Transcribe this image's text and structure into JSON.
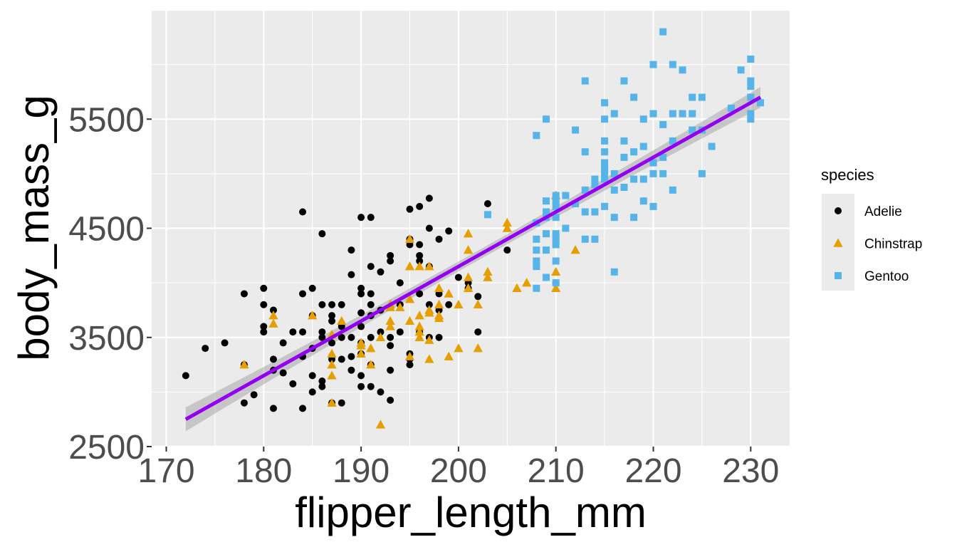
{
  "chart_data": {
    "type": "scatter",
    "xlabel": "flipper_length_mm",
    "ylabel": "body_mass_g",
    "xlim": [
      168.5,
      234.0
    ],
    "ylim": [
      2500,
      6500
    ],
    "x_ticks": [
      170,
      180,
      190,
      200,
      210,
      220,
      230
    ],
    "x_tick_labels": [
      "170",
      "180",
      "190",
      "200",
      "210",
      "220",
      "230"
    ],
    "y_ticks": [
      2500,
      3500,
      4500,
      5500
    ],
    "y_tick_labels": [
      "2500",
      "3500",
      "4500",
      "5500"
    ],
    "grid": true,
    "legend": {
      "title": "species",
      "placement": "right",
      "entries": [
        "Adelie",
        "Chinstrap",
        "Gentoo"
      ]
    },
    "trend_line": {
      "method": "linear",
      "x": [
        172,
        231
      ],
      "y": [
        2750,
        5700
      ],
      "ci_halfwidth_start": 110,
      "ci_halfwidth_mid": 45,
      "ci_halfwidth_end": 95,
      "color": "#9400F0",
      "ci_color": "#999999"
    },
    "series": [
      {
        "name": "Adelie",
        "marker": "circle",
        "color": "#000000",
        "points": [
          [
            172,
            3150
          ],
          [
            174,
            3400
          ],
          [
            176,
            3450
          ],
          [
            178,
            3900
          ],
          [
            178,
            2900
          ],
          [
            178,
            3250
          ],
          [
            179,
            2975
          ],
          [
            180,
            3950
          ],
          [
            180,
            3800
          ],
          [
            180,
            3600
          ],
          [
            180,
            3550
          ],
          [
            181,
            3300
          ],
          [
            181,
            3200
          ],
          [
            181,
            3750
          ],
          [
            181,
            2850
          ],
          [
            182,
            3450
          ],
          [
            182,
            3175
          ],
          [
            183,
            3550
          ],
          [
            183,
            3075
          ],
          [
            184,
            4650
          ],
          [
            184,
            3900
          ],
          [
            184,
            3550
          ],
          [
            184,
            3325
          ],
          [
            184,
            2850
          ],
          [
            185,
            3950
          ],
          [
            185,
            3700
          ],
          [
            185,
            3400
          ],
          [
            185,
            3150
          ],
          [
            185,
            3000
          ],
          [
            186,
            3800
          ],
          [
            186,
            3500
          ],
          [
            186,
            3550
          ],
          [
            186,
            4450
          ],
          [
            186,
            3100
          ],
          [
            186,
            3050
          ],
          [
            187,
            3800
          ],
          [
            187,
            3650
          ],
          [
            187,
            3450
          ],
          [
            187,
            3700
          ],
          [
            187,
            2900
          ],
          [
            187,
            3300
          ],
          [
            188,
            3800
          ],
          [
            188,
            3600
          ],
          [
            188,
            3300
          ],
          [
            188,
            2900
          ],
          [
            188,
            3500
          ],
          [
            189,
            3500
          ],
          [
            189,
            3200
          ],
          [
            189,
            4300
          ],
          [
            189,
            4075
          ],
          [
            189,
            3325
          ],
          [
            190,
            4600
          ],
          [
            190,
            3900
          ],
          [
            190,
            3725
          ],
          [
            190,
            3600
          ],
          [
            190,
            3450
          ],
          [
            190,
            3350
          ],
          [
            190,
            3050
          ],
          [
            190,
            3950
          ],
          [
            190,
            3150
          ],
          [
            191,
            4600
          ],
          [
            191,
            3800
          ],
          [
            191,
            3700
          ],
          [
            191,
            3500
          ],
          [
            191,
            3050
          ],
          [
            191,
            3250
          ],
          [
            191,
            3900
          ],
          [
            191,
            4150
          ],
          [
            192,
            4100
          ],
          [
            192,
            3750
          ],
          [
            192,
            3550
          ],
          [
            192,
            3000
          ],
          [
            193,
            3775
          ],
          [
            193,
            3500
          ],
          [
            193,
            3425
          ],
          [
            193,
            4250
          ],
          [
            193,
            3200
          ],
          [
            193,
            4200
          ],
          [
            193,
            2925
          ],
          [
            194,
            4000
          ],
          [
            194,
            3800
          ],
          [
            194,
            3550
          ],
          [
            195,
            4675
          ],
          [
            195,
            3250
          ],
          [
            195,
            3300
          ],
          [
            195,
            3350
          ],
          [
            195,
            4350
          ],
          [
            195,
            4400
          ],
          [
            196,
            4700
          ],
          [
            196,
            4350
          ],
          [
            196,
            4200
          ],
          [
            196,
            3900
          ],
          [
            196,
            3550
          ],
          [
            196,
            4250
          ],
          [
            197,
            4775
          ],
          [
            197,
            4500
          ],
          [
            197,
            4150
          ],
          [
            197,
            3800
          ],
          [
            197,
            3500
          ],
          [
            198,
            4400
          ],
          [
            198,
            3900
          ],
          [
            198,
            3750
          ],
          [
            198,
            3500
          ],
          [
            199,
            4475
          ],
          [
            199,
            3800
          ],
          [
            200,
            4050
          ],
          [
            201,
            4000
          ],
          [
            201,
            3950
          ],
          [
            202,
            3875
          ],
          [
            202,
            3550
          ],
          [
            203,
            4725
          ],
          [
            205,
            4300
          ],
          [
            210,
            4000
          ]
        ]
      },
      {
        "name": "Chinstrap",
        "marker": "triangle",
        "color": "#E69F00",
        "points": [
          [
            178,
            3250
          ],
          [
            181,
            3700
          ],
          [
            181,
            3625
          ],
          [
            185,
            3700
          ],
          [
            187,
            3525
          ],
          [
            187,
            3350
          ],
          [
            187,
            3250
          ],
          [
            187,
            3150
          ],
          [
            187,
            2900
          ],
          [
            188,
            3650
          ],
          [
            190,
            3425
          ],
          [
            190,
            3350
          ],
          [
            190,
            3450
          ],
          [
            191,
            3250
          ],
          [
            191,
            3400
          ],
          [
            192,
            2700
          ],
          [
            192,
            3500
          ],
          [
            193,
            3650
          ],
          [
            193,
            3600
          ],
          [
            193,
            3800
          ],
          [
            193,
            3775
          ],
          [
            194,
            3775
          ],
          [
            195,
            4400
          ],
          [
            195,
            4150
          ],
          [
            195,
            3850
          ],
          [
            195,
            3650
          ],
          [
            195,
            3325
          ],
          [
            196,
            4150
          ],
          [
            196,
            3600
          ],
          [
            196,
            3700
          ],
          [
            196,
            3550
          ],
          [
            196,
            3500
          ],
          [
            197,
            3750
          ],
          [
            197,
            3725
          ],
          [
            197,
            3475
          ],
          [
            197,
            3300
          ],
          [
            197,
            4150
          ],
          [
            198,
            3950
          ],
          [
            198,
            3800
          ],
          [
            198,
            3700
          ],
          [
            198,
            3675
          ],
          [
            199,
            3900
          ],
          [
            199,
            3325
          ],
          [
            200,
            3400
          ],
          [
            200,
            3800
          ],
          [
            201,
            4450
          ],
          [
            201,
            4300
          ],
          [
            201,
            4050
          ],
          [
            201,
            3950
          ],
          [
            202,
            3400
          ],
          [
            202,
            3800
          ],
          [
            203,
            4100
          ],
          [
            203,
            4050
          ],
          [
            205,
            4550
          ],
          [
            205,
            4500
          ],
          [
            206,
            3950
          ],
          [
            207,
            4000
          ],
          [
            210,
            4800
          ],
          [
            210,
            4100
          ],
          [
            210,
            3950
          ],
          [
            212,
            4300
          ]
        ]
      },
      {
        "name": "Gentoo",
        "marker": "square",
        "color": "#56B4E9",
        "points": [
          [
            203,
            4625
          ],
          [
            208,
            4550
          ],
          [
            208,
            4400
          ],
          [
            208,
            4300
          ],
          [
            208,
            4200
          ],
          [
            208,
            4150
          ],
          [
            208,
            3950
          ],
          [
            208,
            5350
          ],
          [
            209,
            5500
          ],
          [
            209,
            4750
          ],
          [
            209,
            4600
          ],
          [
            209,
            4650
          ],
          [
            209,
            4450
          ],
          [
            209,
            4300
          ],
          [
            209,
            4050
          ],
          [
            210,
            4400
          ],
          [
            210,
            4450
          ],
          [
            210,
            4700
          ],
          [
            210,
            4600
          ],
          [
            210,
            4800
          ],
          [
            210,
            4750
          ],
          [
            210,
            4350
          ],
          [
            210,
            4200
          ],
          [
            210,
            4000
          ],
          [
            211,
            4500
          ],
          [
            211,
            4800
          ],
          [
            212,
            4725
          ],
          [
            212,
            5400
          ],
          [
            213,
            5850
          ],
          [
            213,
            4850
          ],
          [
            213,
            4650
          ],
          [
            213,
            4400
          ],
          [
            213,
            5200
          ],
          [
            214,
            4950
          ],
          [
            214,
            4650
          ],
          [
            214,
            4400
          ],
          [
            214,
            4900
          ],
          [
            215,
            5100
          ],
          [
            215,
            5000
          ],
          [
            215,
            4700
          ],
          [
            215,
            5650
          ],
          [
            215,
            5500
          ],
          [
            215,
            5300
          ],
          [
            215,
            5200
          ],
          [
            215,
            5050
          ],
          [
            215,
            4950
          ],
          [
            216,
            5000
          ],
          [
            216,
            4600
          ],
          [
            216,
            4100
          ],
          [
            216,
            4850
          ],
          [
            216,
            5550
          ],
          [
            217,
            5850
          ],
          [
            217,
            5150
          ],
          [
            217,
            4875
          ],
          [
            217,
            5300
          ],
          [
            218,
            5700
          ],
          [
            218,
            5200
          ],
          [
            218,
            4950
          ],
          [
            218,
            4600
          ],
          [
            219,
            5500
          ],
          [
            219,
            5250
          ],
          [
            219,
            4750
          ],
          [
            219,
            4950
          ],
          [
            220,
            6000
          ],
          [
            220,
            5550
          ],
          [
            220,
            5100
          ],
          [
            220,
            5000
          ],
          [
            220,
            4700
          ],
          [
            221,
            6300
          ],
          [
            221,
            5450
          ],
          [
            221,
            5150
          ],
          [
            221,
            5000
          ],
          [
            222,
            6000
          ],
          [
            222,
            5550
          ],
          [
            222,
            5300
          ],
          [
            222,
            4850
          ],
          [
            223,
            5950
          ],
          [
            223,
            5550
          ],
          [
            224,
            5700
          ],
          [
            224,
            5550
          ],
          [
            224,
            5400
          ],
          [
            225,
            5700
          ],
          [
            225,
            5400
          ],
          [
            225,
            5000
          ],
          [
            226,
            5250
          ],
          [
            228,
            5600
          ],
          [
            229,
            5950
          ],
          [
            230,
            6050
          ],
          [
            230,
            5850
          ],
          [
            230,
            5800
          ],
          [
            230,
            5700
          ],
          [
            230,
            5550
          ],
          [
            230,
            5500
          ],
          [
            231,
            5650
          ]
        ]
      }
    ]
  }
}
